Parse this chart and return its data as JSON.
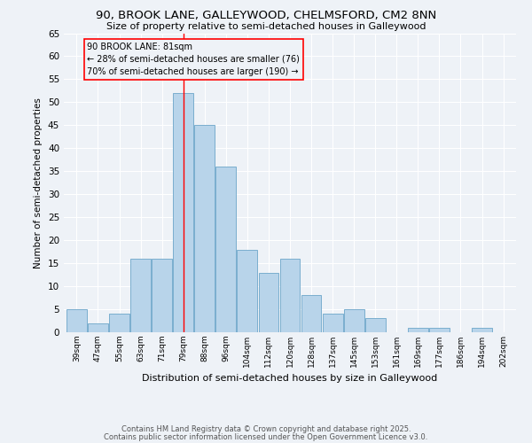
{
  "title1": "90, BROOK LANE, GALLEYWOOD, CHELMSFORD, CM2 8NN",
  "title2": "Size of property relative to semi-detached houses in Galleywood",
  "xlabel": "Distribution of semi-detached houses by size in Galleywood",
  "ylabel": "Number of semi-detached properties",
  "bin_labels": [
    "39sqm",
    "47sqm",
    "55sqm",
    "63sqm",
    "71sqm",
    "79sqm",
    "88sqm",
    "96sqm",
    "104sqm",
    "112sqm",
    "120sqm",
    "128sqm",
    "137sqm",
    "145sqm",
    "153sqm",
    "161sqm",
    "169sqm",
    "177sqm",
    "186sqm",
    "194sqm",
    "202sqm"
  ],
  "bar_heights": [
    5,
    2,
    4,
    16,
    16,
    52,
    45,
    36,
    18,
    13,
    16,
    8,
    4,
    5,
    3,
    0,
    1,
    1,
    0,
    1,
    0
  ],
  "bar_color": "#b8d4ea",
  "bar_edge_color": "#7aaece",
  "subject_bar_index": 5,
  "annotation_line": "90 BROOK LANE: 81sqm",
  "annotation_smaller": "← 28% of semi-detached houses are smaller (76)",
  "annotation_larger": "70% of semi-detached houses are larger (190) →",
  "footer1": "Contains HM Land Registry data © Crown copyright and database right 2025.",
  "footer2": "Contains public sector information licensed under the Open Government Licence v3.0.",
  "ylim": [
    0,
    65
  ],
  "yticks": [
    0,
    5,
    10,
    15,
    20,
    25,
    30,
    35,
    40,
    45,
    50,
    55,
    60,
    65
  ],
  "background_color": "#eef2f7"
}
